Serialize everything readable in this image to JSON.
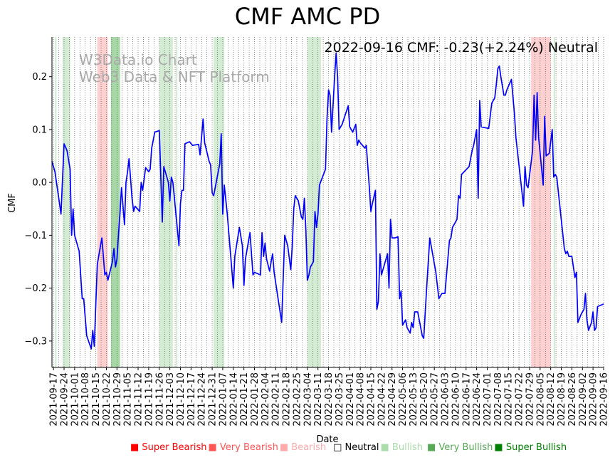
{
  "title": "CMF AMC PD",
  "watermark": [
    "W3Data.io Chart",
    "Web3 Data & NFT Platform"
  ],
  "status_text": "2022-09-16 CMF: -0.23(+2.24%) Neutral",
  "chart_data": {
    "type": "line",
    "title": "CMF AMC PD",
    "xlabel": "Date",
    "ylabel": "CMF",
    "xlim": [
      "2021-09-16",
      "2022-09-16"
    ],
    "ylim": [
      -0.35,
      0.275
    ],
    "yticks": [
      -0.3,
      -0.2,
      -0.1,
      0.0,
      0.1,
      0.2
    ],
    "ytick_labels": [
      "−0.3",
      "−0.2",
      "−0.1",
      "0.0",
      "0.1",
      "0.2"
    ],
    "xtick_labels": [
      "2021-09-17",
      "2021-09-24",
      "2021-10-01",
      "2021-10-08",
      "2021-10-15",
      "2021-10-22",
      "2021-10-29",
      "2021-11-05",
      "2021-11-12",
      "2021-11-19",
      "2021-11-26",
      "2021-12-03",
      "2021-12-10",
      "2021-12-17",
      "2021-12-24",
      "2021-12-31",
      "2022-01-07",
      "2022-01-14",
      "2022-01-21",
      "2022-01-28",
      "2022-02-04",
      "2022-02-11",
      "2022-02-18",
      "2022-02-25",
      "2022-03-04",
      "2022-03-11",
      "2022-03-18",
      "2022-03-25",
      "2022-04-01",
      "2022-04-08",
      "2022-04-15",
      "2022-04-22",
      "2022-04-29",
      "2022-05-06",
      "2022-05-13",
      "2022-05-20",
      "2022-05-27",
      "2022-06-03",
      "2022-06-10",
      "2022-06-17",
      "2022-06-24",
      "2022-07-01",
      "2022-07-08",
      "2022-07-15",
      "2022-07-22",
      "2022-07-29",
      "2022-08-05",
      "2022-08-12",
      "2022-08-19",
      "2022-08-26",
      "2022-09-02",
      "2022-09-09",
      "2022-09-16"
    ],
    "grid": "vertical dotted",
    "series": [
      {
        "color": "#0000ff",
        "points": [
          [
            "2021-09-16",
            0.04
          ],
          [
            "2021-09-18",
            0.02
          ],
          [
            "2021-09-20",
            -0.02
          ],
          [
            "2021-09-22",
            -0.06
          ],
          [
            "2021-09-24",
            0.073
          ],
          [
            "2021-09-26",
            0.06
          ],
          [
            "2021-09-28",
            0.025
          ],
          [
            "2021-09-29",
            -0.1
          ],
          [
            "2021-09-30",
            -0.05
          ],
          [
            "2021-10-01",
            -0.1
          ],
          [
            "2021-10-04",
            -0.13
          ],
          [
            "2021-10-06",
            -0.22
          ],
          [
            "2021-10-07",
            -0.22
          ],
          [
            "2021-10-09",
            -0.29
          ],
          [
            "2021-10-12",
            -0.315
          ],
          [
            "2021-10-13",
            -0.28
          ],
          [
            "2021-10-14",
            -0.31
          ],
          [
            "2021-10-15",
            -0.23
          ],
          [
            "2021-10-16",
            -0.155
          ],
          [
            "2021-10-19",
            -0.105
          ],
          [
            "2021-10-21",
            -0.175
          ],
          [
            "2021-10-22",
            -0.17
          ],
          [
            "2021-10-23",
            -0.185
          ],
          [
            "2021-10-26",
            -0.15
          ],
          [
            "2021-10-27",
            -0.125
          ],
          [
            "2021-10-28",
            -0.16
          ],
          [
            "2021-10-29",
            -0.145
          ],
          [
            "2021-10-30",
            -0.1
          ],
          [
            "2021-10-31",
            -0.06
          ],
          [
            "2021-11-01",
            -0.01
          ],
          [
            "2021-11-03",
            -0.08
          ],
          [
            "2021-11-04",
            0.0
          ],
          [
            "2021-11-05",
            0.02
          ],
          [
            "2021-11-06",
            0.045
          ],
          [
            "2021-11-08",
            -0.03
          ],
          [
            "2021-11-09",
            -0.055
          ],
          [
            "2021-11-10",
            -0.045
          ],
          [
            "2021-11-13",
            -0.055
          ],
          [
            "2021-11-14",
            0.0
          ],
          [
            "2021-11-15",
            -0.015
          ],
          [
            "2021-11-17",
            0.028
          ],
          [
            "2021-11-19",
            0.02
          ],
          [
            "2021-11-20",
            0.025
          ],
          [
            "2021-11-21",
            0.065
          ],
          [
            "2021-11-22",
            0.08
          ],
          [
            "2021-11-23",
            0.095
          ],
          [
            "2021-11-26",
            0.098
          ],
          [
            "2021-11-28",
            -0.075
          ],
          [
            "2021-11-29",
            0.03
          ],
          [
            "2021-12-01",
            0.01
          ],
          [
            "2021-12-02",
            0.0
          ],
          [
            "2021-12-03",
            -0.035
          ],
          [
            "2021-12-04",
            0.01
          ],
          [
            "2021-12-05",
            0.0
          ],
          [
            "2021-12-09",
            -0.12
          ],
          [
            "2021-12-10",
            -0.04
          ],
          [
            "2021-12-11",
            -0.015
          ],
          [
            "2021-12-12",
            -0.015
          ],
          [
            "2021-12-13",
            0.073
          ],
          [
            "2021-12-16",
            0.077
          ],
          [
            "2021-12-18",
            0.07
          ],
          [
            "2021-12-22",
            0.072
          ],
          [
            "2021-12-23",
            0.052
          ],
          [
            "2021-12-25",
            0.12
          ],
          [
            "2021-12-26",
            0.075
          ],
          [
            "2021-12-29",
            0.04
          ],
          [
            "2021-12-30",
            0.033
          ],
          [
            "2021-12-31",
            -0.02
          ],
          [
            "2022-01-01",
            -0.025
          ],
          [
            "2022-01-05",
            0.035
          ],
          [
            "2022-01-06",
            0.092
          ],
          [
            "2022-01-07",
            -0.06
          ],
          [
            "2022-01-08",
            -0.005
          ],
          [
            "2022-01-10",
            -0.06
          ],
          [
            "2022-01-14",
            -0.2
          ],
          [
            "2022-01-15",
            -0.14
          ],
          [
            "2022-01-18",
            -0.085
          ],
          [
            "2022-01-20",
            -0.12
          ],
          [
            "2022-01-21",
            -0.195
          ],
          [
            "2022-01-22",
            -0.145
          ],
          [
            "2022-01-25",
            -0.095
          ],
          [
            "2022-01-27",
            -0.175
          ],
          [
            "2022-01-28",
            -0.17
          ],
          [
            "2022-02-01",
            -0.175
          ],
          [
            "2022-02-02",
            -0.095
          ],
          [
            "2022-02-03",
            -0.14
          ],
          [
            "2022-02-04",
            -0.115
          ],
          [
            "2022-02-05",
            -0.145
          ],
          [
            "2022-02-07",
            -0.168
          ],
          [
            "2022-02-08",
            -0.15
          ],
          [
            "2022-02-09",
            -0.135
          ],
          [
            "2022-02-10",
            -0.17
          ],
          [
            "2022-02-15",
            -0.265
          ],
          [
            "2022-02-17",
            -0.1
          ],
          [
            "2022-02-19",
            -0.12
          ],
          [
            "2022-02-21",
            -0.165
          ],
          [
            "2022-02-22",
            -0.12
          ],
          [
            "2022-02-23",
            -0.05
          ],
          [
            "2022-02-24",
            -0.025
          ],
          [
            "2022-02-26",
            -0.035
          ],
          [
            "2022-02-27",
            -0.05
          ],
          [
            "2022-02-28",
            -0.065
          ],
          [
            "2022-03-01",
            -0.07
          ],
          [
            "2022-03-02",
            -0.03
          ],
          [
            "2022-03-03",
            -0.09
          ],
          [
            "2022-03-04",
            -0.185
          ],
          [
            "2022-03-05",
            -0.175
          ],
          [
            "2022-03-06",
            -0.16
          ],
          [
            "2022-03-08",
            -0.15
          ],
          [
            "2022-03-09",
            -0.055
          ],
          [
            "2022-03-10",
            -0.085
          ],
          [
            "2022-03-11",
            -0.06
          ],
          [
            "2022-03-12",
            -0.005
          ],
          [
            "2022-03-16",
            0.025
          ],
          [
            "2022-03-17",
            0.12
          ],
          [
            "2022-03-18",
            0.175
          ],
          [
            "2022-03-19",
            0.165
          ],
          [
            "2022-03-20",
            0.095
          ],
          [
            "2022-03-22",
            0.2
          ],
          [
            "2022-03-23",
            0.245
          ],
          [
            "2022-03-24",
            0.2
          ],
          [
            "2022-03-25",
            0.1
          ],
          [
            "2022-03-27",
            0.11
          ],
          [
            "2022-03-31",
            0.145
          ],
          [
            "2022-04-01",
            0.105
          ],
          [
            "2022-04-03",
            0.095
          ],
          [
            "2022-04-05",
            0.11
          ],
          [
            "2022-04-06",
            0.07
          ],
          [
            "2022-04-07",
            0.08
          ],
          [
            "2022-04-08",
            0.075
          ],
          [
            "2022-04-11",
            0.065
          ],
          [
            "2022-04-12",
            0.07
          ],
          [
            "2022-04-14",
            -0.01
          ],
          [
            "2022-04-15",
            -0.055
          ],
          [
            "2022-04-16",
            -0.04
          ],
          [
            "2022-04-18",
            -0.015
          ],
          [
            "2022-04-19",
            -0.24
          ],
          [
            "2022-04-20",
            -0.225
          ],
          [
            "2022-04-21",
            -0.135
          ],
          [
            "2022-04-22",
            -0.175
          ],
          [
            "2022-04-23",
            -0.165
          ],
          [
            "2022-04-26",
            -0.135
          ],
          [
            "2022-04-27",
            -0.2
          ],
          [
            "2022-04-28",
            -0.07
          ],
          [
            "2022-04-29",
            -0.105
          ],
          [
            "2022-05-01",
            -0.105
          ],
          [
            "2022-05-03",
            -0.103
          ],
          [
            "2022-05-04",
            -0.22
          ],
          [
            "2022-05-05",
            -0.205
          ],
          [
            "2022-05-06",
            -0.27
          ],
          [
            "2022-05-07",
            -0.265
          ],
          [
            "2022-05-08",
            -0.26
          ],
          [
            "2022-05-09",
            -0.275
          ],
          [
            "2022-05-11",
            -0.285
          ],
          [
            "2022-05-12",
            -0.265
          ],
          [
            "2022-05-13",
            -0.275
          ],
          [
            "2022-05-14",
            -0.245
          ],
          [
            "2022-05-16",
            -0.245
          ],
          [
            "2022-05-17",
            -0.26
          ],
          [
            "2022-05-19",
            -0.29
          ],
          [
            "2022-05-20",
            -0.295
          ],
          [
            "2022-05-22",
            -0.195
          ],
          [
            "2022-05-24",
            -0.105
          ],
          [
            "2022-05-28",
            -0.17
          ],
          [
            "2022-05-30",
            -0.22
          ],
          [
            "2022-05-31",
            -0.215
          ],
          [
            "2022-06-01",
            -0.21
          ],
          [
            "2022-06-03",
            -0.21
          ],
          [
            "2022-06-06",
            -0.11
          ],
          [
            "2022-06-07",
            -0.105
          ],
          [
            "2022-06-08",
            -0.085
          ],
          [
            "2022-06-09",
            -0.08
          ],
          [
            "2022-06-10",
            -0.075
          ],
          [
            "2022-06-11",
            -0.07
          ],
          [
            "2022-06-12",
            -0.025
          ],
          [
            "2022-06-13",
            -0.03
          ],
          [
            "2022-06-14",
            0.015
          ],
          [
            "2022-06-19",
            0.03
          ],
          [
            "2022-06-21",
            0.06
          ],
          [
            "2022-06-22",
            0.07
          ],
          [
            "2022-06-24",
            0.1
          ],
          [
            "2022-06-25",
            -0.03
          ],
          [
            "2022-06-26",
            0.155
          ],
          [
            "2022-06-27",
            0.105
          ],
          [
            "2022-07-02",
            0.102
          ],
          [
            "2022-07-04",
            0.15
          ],
          [
            "2022-07-06",
            0.16
          ],
          [
            "2022-07-07",
            0.185
          ],
          [
            "2022-07-08",
            0.215
          ],
          [
            "2022-07-09",
            0.22
          ],
          [
            "2022-07-10",
            0.2
          ],
          [
            "2022-07-12",
            0.165
          ],
          [
            "2022-07-13",
            0.165
          ],
          [
            "2022-07-14",
            0.175
          ],
          [
            "2022-07-17",
            0.195
          ],
          [
            "2022-07-19",
            0.13
          ],
          [
            "2022-07-20",
            0.085
          ],
          [
            "2022-07-25",
            -0.045
          ],
          [
            "2022-07-26",
            0.03
          ],
          [
            "2022-07-27",
            -0.005
          ],
          [
            "2022-07-28",
            -0.01
          ],
          [
            "2022-07-31",
            0.06
          ],
          [
            "2022-08-01",
            0.165
          ],
          [
            "2022-08-02",
            0.08
          ],
          [
            "2022-08-03",
            0.17
          ],
          [
            "2022-08-04",
            0.085
          ],
          [
            "2022-08-07",
            -0.005
          ],
          [
            "2022-08-08",
            0.125
          ],
          [
            "2022-08-09",
            0.05
          ],
          [
            "2022-08-11",
            0.055
          ],
          [
            "2022-08-13",
            0.1
          ],
          [
            "2022-08-14",
            0.01
          ],
          [
            "2022-08-15",
            0.015
          ],
          [
            "2022-08-16",
            0.01
          ],
          [
            "2022-08-21",
            -0.125
          ],
          [
            "2022-08-22",
            -0.135
          ],
          [
            "2022-08-23",
            -0.13
          ],
          [
            "2022-08-24",
            -0.14
          ],
          [
            "2022-08-26",
            -0.14
          ],
          [
            "2022-08-28",
            -0.18
          ],
          [
            "2022-08-29",
            -0.17
          ],
          [
            "2022-08-30",
            -0.265
          ],
          [
            "2022-09-01",
            -0.25
          ],
          [
            "2022-09-03",
            -0.24
          ],
          [
            "2022-09-04",
            -0.21
          ],
          [
            "2022-09-05",
            -0.26
          ],
          [
            "2022-09-06",
            -0.28
          ],
          [
            "2022-09-08",
            -0.265
          ],
          [
            "2022-09-09",
            -0.245
          ],
          [
            "2022-09-10",
            -0.28
          ],
          [
            "2022-09-11",
            -0.275
          ],
          [
            "2022-09-12",
            -0.235
          ],
          [
            "2022-09-16",
            -0.23
          ]
        ]
      }
    ],
    "signal_bands": [
      {
        "start": "2021-09-18",
        "end": "2021-09-19",
        "level": "Bullish"
      },
      {
        "start": "2021-09-23",
        "end": "2021-09-28",
        "level": "Bullish"
      },
      {
        "start": "2021-10-16",
        "end": "2021-10-23",
        "level": "Bearish"
      },
      {
        "start": "2021-10-25",
        "end": "2021-10-31",
        "level": "Very Bullish"
      },
      {
        "start": "2021-11-26",
        "end": "2021-12-05",
        "level": "Bullish"
      },
      {
        "start": "2021-12-07",
        "end": "2021-12-08",
        "level": "Bullish"
      },
      {
        "start": "2022-01-01",
        "end": "2022-01-08",
        "level": "Bullish"
      },
      {
        "start": "2022-03-04",
        "end": "2022-03-13",
        "level": "Bullish"
      },
      {
        "start": "2022-07-30",
        "end": "2022-08-12",
        "level": "Bearish"
      },
      {
        "start": "2022-08-14",
        "end": "2022-08-15",
        "level": "Bullish"
      }
    ],
    "legend": [
      {
        "label": "Super Bearish",
        "color": "#ff0000",
        "symbol": "■"
      },
      {
        "label": "Very Bearish",
        "color": "#ff5555",
        "symbol": "■"
      },
      {
        "label": "Bearish",
        "color": "#ffaaaa",
        "symbol": "■"
      },
      {
        "label": "Neutral",
        "color": "#000000",
        "symbol": "□"
      },
      {
        "label": "Bullish",
        "color": "#aaddaa",
        "symbol": "■"
      },
      {
        "label": "Very Bullish",
        "color": "#55aa55",
        "symbol": "■"
      },
      {
        "label": "Super Bullish",
        "color": "#008000",
        "symbol": "■"
      }
    ],
    "band_colors": {
      "Bearish": "#ffd0d0",
      "Bullish": "#d4ecd4",
      "Very Bullish": "#a8d8a8"
    },
    "legend_placement": "bottom"
  }
}
